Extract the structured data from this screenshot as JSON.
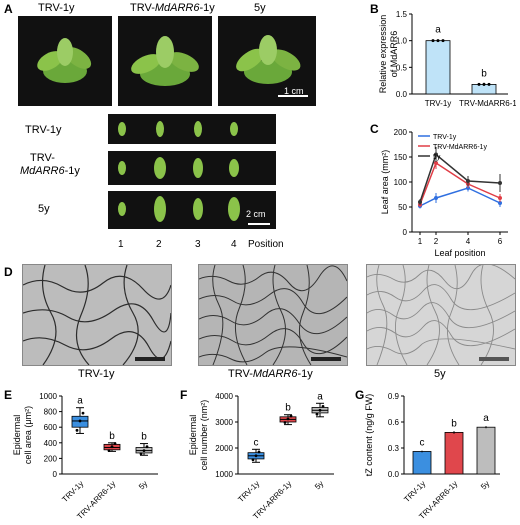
{
  "panels": {
    "A": "A",
    "B": "B",
    "C": "C",
    "D": "D",
    "E": "E",
    "F": "F",
    "G": "G"
  },
  "panel_a": {
    "top_labels": [
      "TRV-1y",
      "TRV-",
      "MdARR6",
      "-1y",
      "5y"
    ],
    "scale_top": "1 cm",
    "row_labels": [
      "TRV-1y",
      "TRV-",
      "MdARR6",
      "-1y",
      "5y"
    ],
    "scale_bottom": "2 cm",
    "positions": [
      "1",
      "2",
      "3",
      "4"
    ],
    "position_label": "Position"
  },
  "panel_d": {
    "captions": [
      "TRV-1y",
      "TRV-",
      "MdARR6",
      "-1y",
      "5y"
    ]
  },
  "colors": {
    "trv": "#3b8fe0",
    "arr6": "#e0474c",
    "y5": "#bdbdbd",
    "line_trv": "#2f6fe0",
    "line_arr6": "#e03d46",
    "line_5y": "#333333"
  },
  "chart_data": [
    {
      "id": "B",
      "type": "bar",
      "categories": [
        "TRV-1y",
        "TRV-MdARR6-1y"
      ],
      "values": [
        1.0,
        0.18
      ],
      "errors": [
        0.01,
        0.03
      ],
      "ylabel_lines": [
        "Relative expression",
        "of MdARR6"
      ],
      "ylim": [
        0,
        1.5
      ],
      "yticks": [
        "0.0",
        "0.5",
        "1.0",
        "1.5"
      ],
      "letters": [
        "a",
        "b"
      ]
    },
    {
      "id": "C",
      "type": "line",
      "x": [
        1,
        2,
        4,
        6
      ],
      "xticks": [
        "1",
        "2",
        "4",
        "6"
      ],
      "xlabel": "Leaf position",
      "ylabel": "Leaf area (mm²)",
      "ylim": [
        0,
        200
      ],
      "yticks": [
        "0",
        "50",
        "100",
        "150",
        "200"
      ],
      "series": [
        {
          "name": "TRV-1y",
          "values": [
            52,
            68,
            88,
            58
          ],
          "errors": [
            5,
            10,
            7,
            8
          ]
        },
        {
          "name": "TRV-MdARR6-1y",
          "values": [
            55,
            138,
            96,
            68
          ],
          "errors": [
            5,
            12,
            8,
            8
          ]
        },
        {
          "name": "5y",
          "values": [
            60,
            155,
            102,
            98
          ],
          "errors": [
            6,
            15,
            10,
            18
          ]
        }
      ]
    },
    {
      "id": "E",
      "type": "box",
      "categories": [
        "TRV-1y",
        "TRV-ARR6-1y",
        "5y"
      ],
      "ylabel_lines": [
        "Epidermal",
        "cell area (μm²)"
      ],
      "ylim": [
        0,
        1000
      ],
      "yticks": [
        "0",
        "200",
        "400",
        "600",
        "800",
        "1000"
      ],
      "boxes": [
        {
          "min": 520,
          "q1": 600,
          "median": 680,
          "q3": 740,
          "max": 850,
          "points": [
            560,
            680,
            780
          ]
        },
        {
          "min": 290,
          "q1": 310,
          "median": 340,
          "q3": 380,
          "max": 400,
          "points": [
            300,
            350,
            390
          ]
        },
        {
          "min": 240,
          "q1": 270,
          "median": 300,
          "q3": 340,
          "max": 390,
          "points": [
            260,
            300,
            350
          ]
        }
      ],
      "letters": [
        "a",
        "b",
        "b"
      ]
    },
    {
      "id": "F",
      "type": "box",
      "categories": [
        "TRV-1y",
        "TRV-ARR6-1y",
        "5y"
      ],
      "ylabel_lines": [
        "Epidermal",
        "cell number (nm²)"
      ],
      "ylim": [
        1000,
        4000
      ],
      "yticks": [
        "1000",
        "2000",
        "3000",
        "4000"
      ],
      "boxes": [
        {
          "min": 1450,
          "q1": 1580,
          "median": 1700,
          "q3": 1820,
          "max": 1950,
          "points": [
            1550,
            1700,
            1850
          ]
        },
        {
          "min": 2900,
          "q1": 3000,
          "median": 3100,
          "q3": 3200,
          "max": 3280,
          "points": [
            2980,
            3120,
            3230
          ]
        },
        {
          "min": 3200,
          "q1": 3350,
          "median": 3450,
          "q3": 3560,
          "max": 3720,
          "points": [
            3300,
            3450,
            3600
          ]
        }
      ],
      "letters": [
        "c",
        "b",
        "a"
      ]
    },
    {
      "id": "G",
      "type": "bar",
      "categories": [
        "TRV-1y",
        "TRV-ARR6-1y",
        "5y"
      ],
      "values": [
        0.26,
        0.48,
        0.54
      ],
      "errors": [
        0.01,
        0.015,
        0.012
      ],
      "ylabel": "tZ content (ng/g FW)",
      "ylim": [
        0,
        0.9
      ],
      "yticks": [
        "0.0",
        "0.3",
        "0.6",
        "0.9"
      ],
      "letters": [
        "c",
        "b",
        "a"
      ]
    }
  ]
}
